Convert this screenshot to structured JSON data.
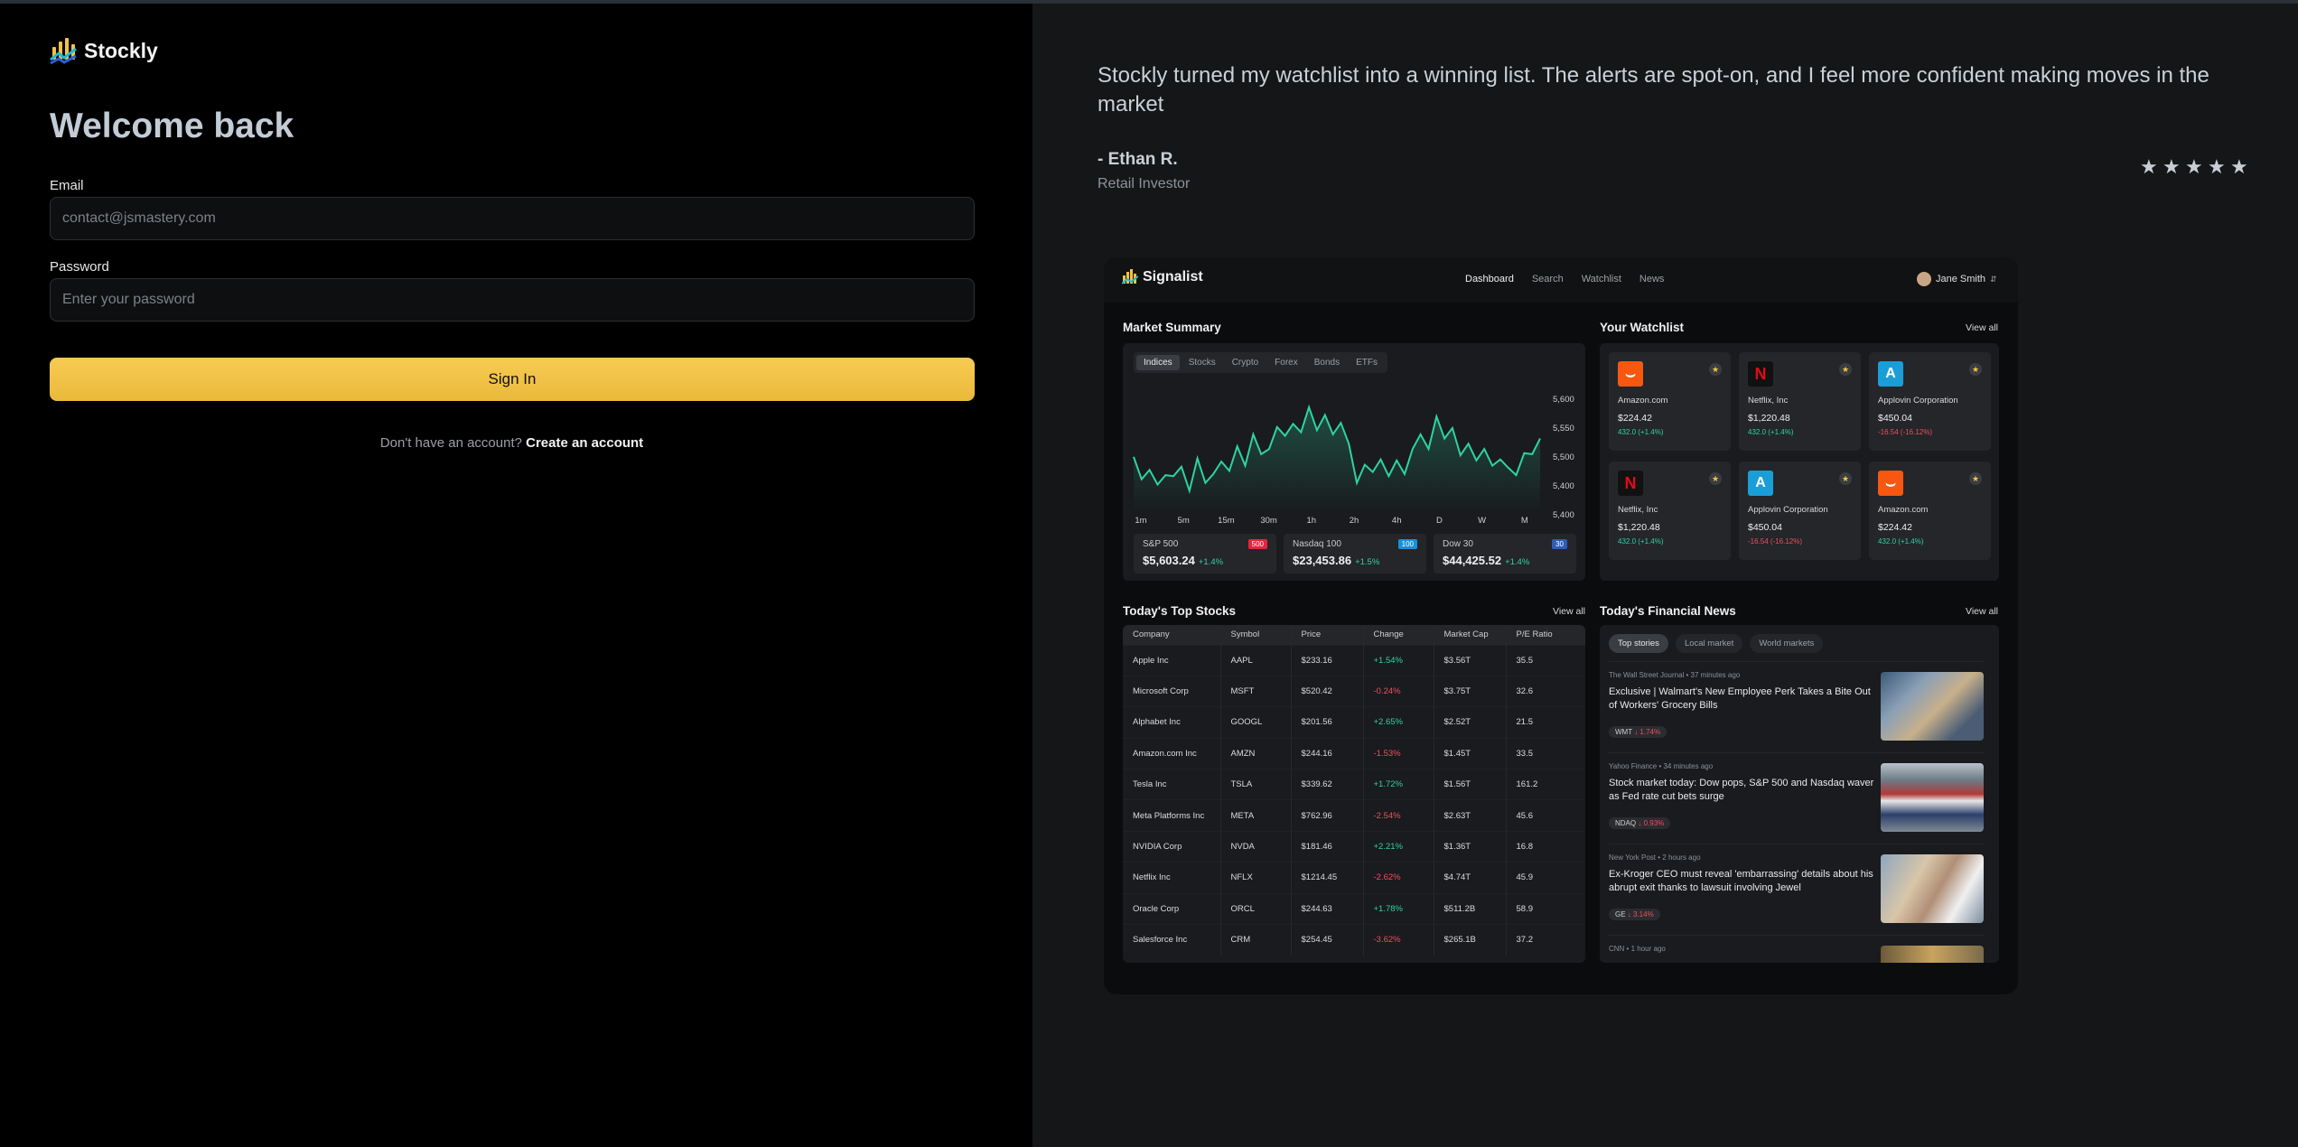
{
  "app": {
    "brand": "Stockly"
  },
  "auth": {
    "title": "Welcome back",
    "email_label": "Email",
    "email_placeholder": "contact@jsmastery.com",
    "password_label": "Password",
    "password_placeholder": "Enter your password",
    "signin_label": "Sign In",
    "signup_prompt": "Don't have an account?",
    "signup_link": "Create an account",
    "accent_color": "#f5c242"
  },
  "testimonial": {
    "quote": "Stockly turned my watchlist into a winning list. The alerts are spot-on, and I feel more confident making moves in the market",
    "author": "- Ethan R.",
    "role": "Retail Investor",
    "rating": 5
  },
  "preview": {
    "brand": "Signalist",
    "nav": [
      "Dashboard",
      "Search",
      "Watchlist",
      "News"
    ],
    "user": "Jane Smith",
    "market_summary": {
      "title": "Market Summary",
      "tabs": [
        "Indices",
        "Stocks",
        "Crypto",
        "Forex",
        "Bonds",
        "ETFs"
      ],
      "y_ticks": [
        "5,600",
        "5,550",
        "5,500",
        "5,400",
        "5,400"
      ],
      "x_ticks": [
        "1m",
        "5m",
        "15m",
        "30m",
        "1h",
        "2h",
        "4h",
        "D",
        "W",
        "M"
      ],
      "line_values": [
        5505,
        5462,
        5480,
        5452,
        5470,
        5468,
        5486,
        5440,
        5502,
        5455,
        5472,
        5496,
        5478,
        5525,
        5488,
        5548,
        5510,
        5520,
        5562,
        5545,
        5568,
        5552,
        5600,
        5556,
        5585,
        5548,
        5570,
        5530,
        5455,
        5490,
        5476,
        5500,
        5468,
        5498,
        5472,
        5520,
        5548,
        5520,
        5582,
        5540,
        5560,
        5508,
        5530,
        5498,
        5520,
        5488,
        5500,
        5484,
        5470,
        5512,
        5510,
        5540
      ],
      "indices": [
        {
          "name": "S&P 500",
          "value": "$5,603.24",
          "change": "+1.4%",
          "badge": "500",
          "badge_color": "#e4253f"
        },
        {
          "name": "Nasdaq 100",
          "value": "$23,453.86",
          "change": "+1.5%",
          "badge": "100",
          "badge_color": "#1c8fd6"
        },
        {
          "name": "Dow 30",
          "value": "$44,425.52",
          "change": "+1.4%",
          "badge": "30",
          "badge_color": "#2d5fb0"
        }
      ]
    },
    "watchlist": {
      "title": "Your Watchlist",
      "view_all": "View all",
      "items": [
        {
          "name": "Amazon.com",
          "price": "$224.42",
          "change": "432.0 (+1.4%)",
          "dir": "up",
          "logo": "amazon",
          "logo_bg": "#f7570f"
        },
        {
          "name": "Netflix, Inc",
          "price": "$1,220.48",
          "change": "432.0 (+1.4%)",
          "dir": "up",
          "logo": "netflix",
          "logo_bg": "#111111"
        },
        {
          "name": "Applovin Corporation",
          "price": "$450.04",
          "change": "-16.54 (-16.12%)",
          "dir": "dn",
          "logo": "applovin",
          "logo_bg": "#1a9ed8"
        },
        {
          "name": "Netflix, Inc",
          "price": "$1,220.48",
          "change": "432.0 (+1.4%)",
          "dir": "up",
          "logo": "netflix",
          "logo_bg": "#111111"
        },
        {
          "name": "Applovin Corporation",
          "price": "$450.04",
          "change": "-16.54 (-16.12%)",
          "dir": "dn",
          "logo": "applovin",
          "logo_bg": "#1a9ed8"
        },
        {
          "name": "Amazon.com",
          "price": "$224.42",
          "change": "432.0 (+1.4%)",
          "dir": "up",
          "logo": "amazon",
          "logo_bg": "#f7570f"
        }
      ]
    },
    "top_stocks": {
      "title": "Today's Top Stocks",
      "view_all": "View all",
      "columns": [
        "Company",
        "Symbol",
        "Price",
        "Change",
        "Market Cap",
        "P/E Ratio"
      ],
      "rows": [
        [
          "Apple Inc",
          "AAPL",
          "$233.16",
          "+1.54%",
          "$3.56T",
          "35.5"
        ],
        [
          "Microsoft Corp",
          "MSFT",
          "$520.42",
          "-0.24%",
          "$3.75T",
          "32.6"
        ],
        [
          "Alphabet Inc",
          "GOOGL",
          "$201.56",
          "+2.65%",
          "$2.52T",
          "21.5"
        ],
        [
          "Amazon.com Inc",
          "AMZN",
          "$244.16",
          "-1.53%",
          "$1.45T",
          "33.5"
        ],
        [
          "Tesla Inc",
          "TSLA",
          "$339.62",
          "+1.72%",
          "$1.56T",
          "161.2"
        ],
        [
          "Meta Platforms Inc",
          "META",
          "$762.96",
          "-2.54%",
          "$2.63T",
          "45.6"
        ],
        [
          "NVIDIA Corp",
          "NVDA",
          "$181.46",
          "+2.21%",
          "$1.36T",
          "16.8"
        ],
        [
          "Netflix Inc",
          "NFLX",
          "$1214.45",
          "-2.62%",
          "$4.74T",
          "45.9"
        ],
        [
          "Oracle Corp",
          "ORCL",
          "$244.63",
          "+1.78%",
          "$511.2B",
          "58.9"
        ],
        [
          "Salesforce Inc",
          "CRM",
          "$254.45",
          "-3.62%",
          "$265.1B",
          "37.2"
        ]
      ]
    },
    "news": {
      "title": "Today's Financial News",
      "view_all": "View all",
      "tabs": [
        "Top stories",
        "Local market",
        "World markets"
      ],
      "items": [
        {
          "source": "The Wall Street Journal",
          "time": "37 minutes ago",
          "headline": "Exclusive | Walmart's New Employee Perk Takes a Bite Out of Workers' Grocery Bills",
          "ticker": "WMT",
          "change": "1.74%",
          "dir": "dn"
        },
        {
          "source": "Yahoo Finance",
          "time": "34 minutes ago",
          "headline": "Stock market today: Dow pops, S&P 500 and Nasdaq waver as Fed rate cut bets surge",
          "ticker": "NDAQ",
          "change": "0.93%",
          "dir": "dn"
        },
        {
          "source": "New York Post",
          "time": "2 hours ago",
          "headline": "Ex-Kroger CEO must reveal 'embarrassing' details about his abrupt exit thanks to lawsuit involving Jewel",
          "ticker": "GE",
          "change": "3.14%",
          "dir": "dn"
        },
        {
          "source": "CNN",
          "time": "1 hour ago",
          "headline": "",
          "ticker": "",
          "change": "",
          "dir": "up"
        }
      ]
    }
  }
}
